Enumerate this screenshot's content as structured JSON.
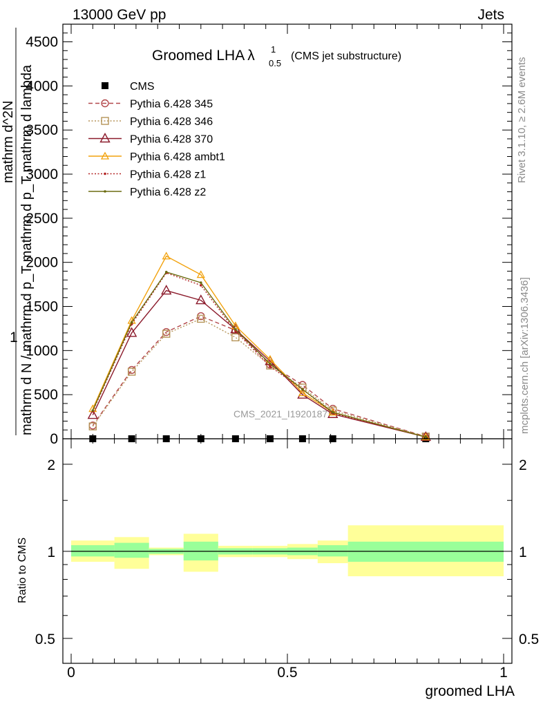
{
  "header": {
    "left": "13000 GeV pp",
    "right": "Jets"
  },
  "title": {
    "main": "Groomed LHA",
    "symbol": "λ",
    "sup": "1",
    "sub": "0.5",
    "paren": "(CMS jet substructure)"
  },
  "side": {
    "rivet": "Rivet 3.1.10, ≥ 2.6M events",
    "mcplots": "mcplots.cern.ch [arXiv:1306.3436]"
  },
  "watermark": "CMS_2021_I1920187",
  "ylabel": {
    "one": "1",
    "main_denom": "mathrm d N / mathrm d p_T mathrm d p_T mathrm d lambda",
    "main_num": "mathrm d^2N",
    "ratio": "Ratio to CMS"
  },
  "xlabel": "groomed LHA",
  "colors": {
    "cms": "#000000",
    "p345": "#b2474a",
    "p346": "#b59458",
    "p370": "#8b1a2b",
    "ambt1": "#f2a20d",
    "z1": "#b22222",
    "z2": "#6b6b10",
    "band_inner": "#99ff99",
    "band_outer": "#ffff99"
  },
  "chart_data": {
    "type": "line",
    "main": {
      "xlim": [
        0,
        1
      ],
      "ylim": [
        0,
        4700
      ],
      "yticks": [
        0,
        500,
        1000,
        1500,
        2000,
        2500,
        3000,
        3500,
        4000,
        4500
      ],
      "ytick_labels": [
        "0",
        "500",
        "1000",
        "1500",
        "2000",
        "2500",
        "3000",
        "3500",
        "4000",
        "4500"
      ],
      "x": [
        0.05,
        0.14,
        0.22,
        0.3,
        0.38,
        0.46,
        0.535,
        0.605,
        0.82
      ],
      "series": [
        {
          "name": "CMS",
          "key": "cms",
          "marker": "square",
          "line": "none",
          "values": [
            0,
            0,
            0,
            0,
            0,
            0,
            0,
            0,
            0
          ]
        },
        {
          "name": "Pythia 6.428 345",
          "key": "p345",
          "marker": "circle",
          "line": "dashed",
          "values": [
            150,
            780,
            1210,
            1390,
            1230,
            840,
            610,
            340,
            25
          ]
        },
        {
          "name": "Pythia 6.428 346",
          "key": "p346",
          "marker": "square-open",
          "line": "dotted",
          "values": [
            140,
            760,
            1190,
            1360,
            1150,
            830,
            580,
            320,
            25
          ]
        },
        {
          "name": "Pythia 6.428 370",
          "key": "p370",
          "marker": "triangle",
          "line": "solid",
          "values": [
            270,
            1200,
            1680,
            1570,
            1240,
            880,
            500,
            280,
            20
          ]
        },
        {
          "name": "Pythia 6.428 ambt1",
          "key": "ambt1",
          "marker": "triangle-small",
          "line": "solid",
          "values": [
            340,
            1340,
            2070,
            1860,
            1280,
            900,
            520,
            300,
            20
          ]
        },
        {
          "name": "Pythia 6.428 z1",
          "key": "z1",
          "marker": "dot",
          "line": "dotted",
          "values": [
            310,
            1300,
            1880,
            1740,
            1220,
            820,
            560,
            290,
            20
          ]
        },
        {
          "name": "Pythia 6.428 z2",
          "key": "z2",
          "marker": "dot",
          "line": "solid",
          "values": [
            320,
            1320,
            1890,
            1770,
            1240,
            850,
            560,
            300,
            20
          ]
        }
      ]
    },
    "ratio": {
      "ylim": [
        0.41,
        2.45
      ],
      "yticks": [
        0.5,
        1,
        2
      ],
      "ytick_labels": [
        "0.5",
        "1",
        "2"
      ],
      "xticks": [
        0,
        0.5,
        1
      ],
      "xtick_labels": [
        "0",
        "0.5",
        "1"
      ],
      "bins": [
        {
          "x0": 0.0,
          "x1": 0.1,
          "inner": [
            0.96,
            1.05
          ],
          "outer": [
            0.92,
            1.09
          ]
        },
        {
          "x0": 0.1,
          "x1": 0.18,
          "inner": [
            0.95,
            1.07
          ],
          "outer": [
            0.87,
            1.12
          ]
        },
        {
          "x0": 0.18,
          "x1": 0.26,
          "inner": [
            0.98,
            1.02
          ],
          "outer": [
            0.97,
            1.03
          ]
        },
        {
          "x0": 0.26,
          "x1": 0.34,
          "inner": [
            0.93,
            1.08
          ],
          "outer": [
            0.85,
            1.15
          ]
        },
        {
          "x0": 0.34,
          "x1": 0.42,
          "inner": [
            0.975,
            1.025
          ],
          "outer": [
            0.955,
            1.045
          ]
        },
        {
          "x0": 0.42,
          "x1": 0.5,
          "inner": [
            0.975,
            1.025
          ],
          "outer": [
            0.955,
            1.045
          ]
        },
        {
          "x0": 0.5,
          "x1": 0.57,
          "inner": [
            0.97,
            1.03
          ],
          "outer": [
            0.94,
            1.06
          ]
        },
        {
          "x0": 0.57,
          "x1": 0.64,
          "inner": [
            0.96,
            1.05
          ],
          "outer": [
            0.91,
            1.09
          ]
        },
        {
          "x0": 0.64,
          "x1": 1.0,
          "inner": [
            0.92,
            1.08
          ],
          "outer": [
            0.82,
            1.23
          ]
        }
      ]
    }
  }
}
